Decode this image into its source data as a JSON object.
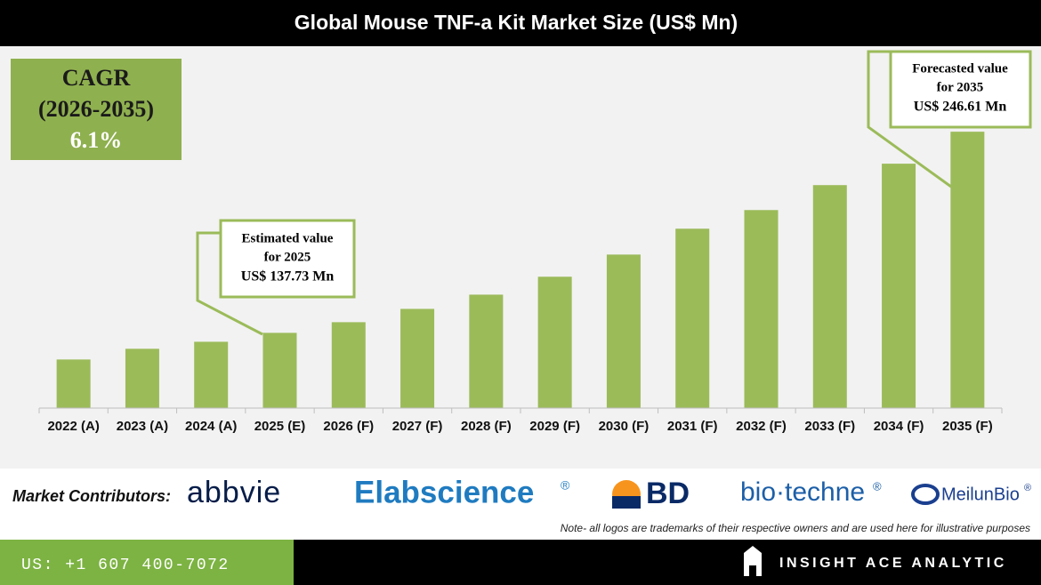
{
  "chart_data": {
    "type": "bar",
    "title": "Global Mouse TNF-a Kit Market Size (US$ Mn)",
    "categories": [
      "2022 (A)",
      "2023 (A)",
      "2024 (A)",
      "2025 (E)",
      "2026 (F)",
      "2027 (F)",
      "2028 (F)",
      "2029 (F)",
      "2030 (F)",
      "2031 (F)",
      "2032 (F)",
      "2033 (F)",
      "2034 (F)",
      "2035 (F)"
    ],
    "values": [
      123.3,
      129.1,
      132.9,
      137.73,
      143.5,
      150.7,
      158.4,
      168.1,
      180.1,
      194.1,
      204.2,
      217.7,
      229.3,
      246.61
    ],
    "value_labels": [
      null,
      null,
      null,
      "US$ 137.73 Mn",
      null,
      null,
      null,
      null,
      null,
      null,
      null,
      null,
      null,
      "US$ 246.61 Mn"
    ],
    "annotations": [
      [
        "Estimated value",
        "for 2025"
      ],
      [
        "Forecasted value",
        "for 2035"
      ]
    ],
    "color": "#9bbb59",
    "ylim": [
      97,
      290
    ],
    "cagr": {
      "label": "CAGR",
      "period": "(2026-2035)",
      "value": "6.1%"
    }
  },
  "contributors": {
    "label": "Market Contributors:",
    "logos": [
      "abbvie",
      "Elabscience",
      "®",
      "BD",
      "bio·techne",
      "®",
      "MeilunBio",
      "®"
    ],
    "note": "Note- all logos are trademarks of their respective owners and are used here for illustrative purposes"
  },
  "footer": {
    "phone": "US: +1 607 400-7072",
    "brand": "INSIGHT ACE ANALYTIC"
  }
}
